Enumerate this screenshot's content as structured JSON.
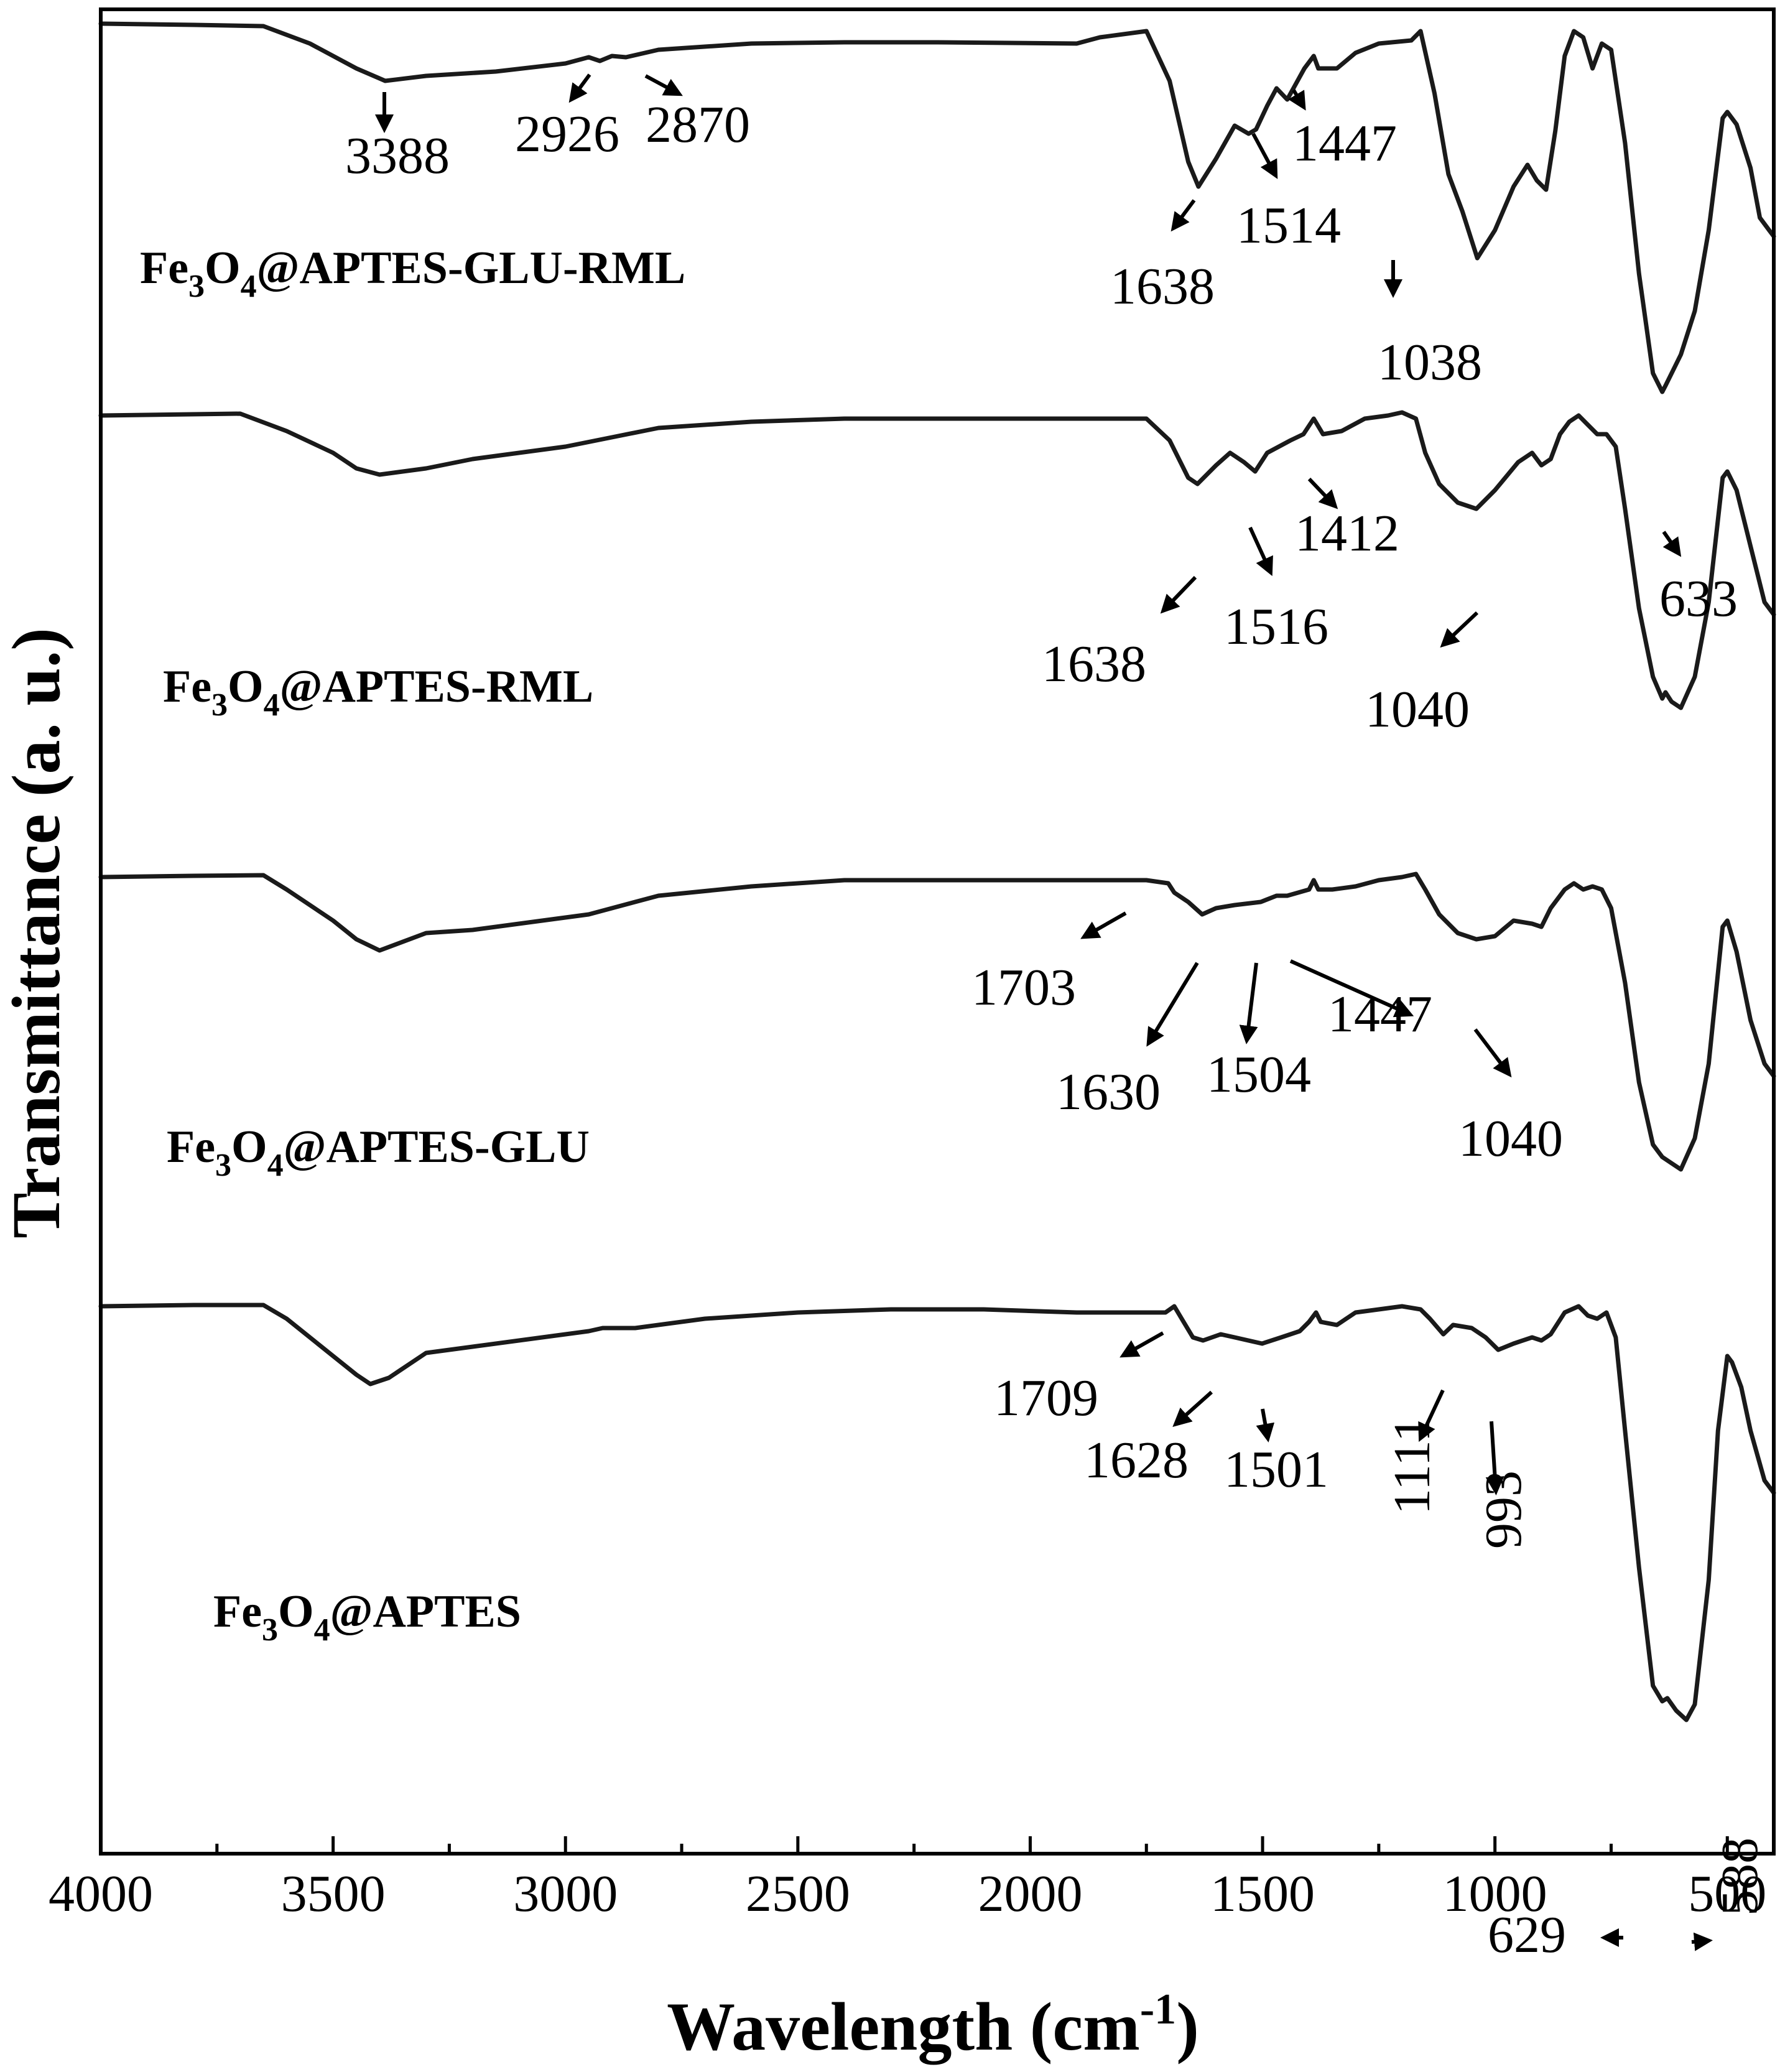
{
  "chart_data": {
    "type": "line",
    "title": "",
    "xlabel": "Wavelength (cm",
    "xlabel_sup": "-1",
    "xlabel_close": ")",
    "ylabel": "Transmittance (a. u.)",
    "xlim": [
      4000,
      400
    ],
    "x_reversed": true,
    "x_ticks": [
      4000,
      3500,
      3000,
      2500,
      2000,
      1500,
      1000,
      500
    ],
    "x_tick_labels": [
      "4000",
      "3500",
      "3000",
      "2500",
      "2000",
      "1500",
      "1000",
      "500"
    ],
    "grid": false,
    "series": [
      {
        "name_parts": [
          "Fe",
          "3",
          "O",
          "4",
          "@APTES-GLU-RML"
        ],
        "values": [
          [
            4000,
            8
          ],
          [
            3800,
            10
          ],
          [
            3650,
            12
          ],
          [
            3550,
            40
          ],
          [
            3450,
            80
          ],
          [
            3388,
            100
          ],
          [
            3300,
            92
          ],
          [
            3150,
            85
          ],
          [
            3000,
            72
          ],
          [
            2950,
            62
          ],
          [
            2926,
            68
          ],
          [
            2900,
            60
          ],
          [
            2870,
            62
          ],
          [
            2800,
            50
          ],
          [
            2600,
            40
          ],
          [
            2400,
            38
          ],
          [
            2200,
            38
          ],
          [
            1900,
            40
          ],
          [
            1850,
            30
          ],
          [
            1750,
            20
          ],
          [
            1700,
            100
          ],
          [
            1660,
            230
          ],
          [
            1638,
            270
          ],
          [
            1600,
            225
          ],
          [
            1560,
            172
          ],
          [
            1530,
            185
          ],
          [
            1514,
            178
          ],
          [
            1490,
            140
          ],
          [
            1470,
            112
          ],
          [
            1447,
            130
          ],
          [
            1410,
            80
          ],
          [
            1390,
            60
          ],
          [
            1380,
            80
          ],
          [
            1340,
            80
          ],
          [
            1300,
            55
          ],
          [
            1250,
            40
          ],
          [
            1180,
            35
          ],
          [
            1160,
            20
          ],
          [
            1130,
            120
          ],
          [
            1100,
            250
          ],
          [
            1070,
            310
          ],
          [
            1038,
            385
          ],
          [
            1000,
            340
          ],
          [
            960,
            270
          ],
          [
            930,
            235
          ],
          [
            910,
            260
          ],
          [
            890,
            275
          ],
          [
            870,
            180
          ],
          [
            850,
            60
          ],
          [
            830,
            20
          ],
          [
            810,
            30
          ],
          [
            790,
            80
          ],
          [
            770,
            40
          ],
          [
            750,
            50
          ],
          [
            720,
            200
          ],
          [
            690,
            410
          ],
          [
            660,
            570
          ],
          [
            640,
            600
          ],
          [
            633,
            590
          ],
          [
            600,
            540
          ],
          [
            570,
            470
          ],
          [
            540,
            340
          ],
          [
            510,
            160
          ],
          [
            500,
            150
          ],
          [
            480,
            170
          ],
          [
            450,
            240
          ],
          [
            430,
            320
          ],
          [
            410,
            340
          ],
          [
            400,
            350
          ]
        ]
      },
      {
        "name_parts": [
          "Fe",
          "3",
          "O",
          "4",
          "@APTES-RML"
        ],
        "values": [
          [
            4000,
            0
          ],
          [
            3700,
            -3
          ],
          [
            3600,
            25
          ],
          [
            3500,
            60
          ],
          [
            3450,
            85
          ],
          [
            3400,
            95
          ],
          [
            3300,
            85
          ],
          [
            3200,
            70
          ],
          [
            3000,
            50
          ],
          [
            2900,
            35
          ],
          [
            2800,
            20
          ],
          [
            2600,
            10
          ],
          [
            2400,
            5
          ],
          [
            2200,
            5
          ],
          [
            1900,
            5
          ],
          [
            1750,
            5
          ],
          [
            1700,
            40
          ],
          [
            1660,
            100
          ],
          [
            1640,
            110
          ],
          [
            1600,
            80
          ],
          [
            1570,
            60
          ],
          [
            1540,
            75
          ],
          [
            1516,
            90
          ],
          [
            1490,
            60
          ],
          [
            1440,
            40
          ],
          [
            1412,
            30
          ],
          [
            1390,
            5
          ],
          [
            1370,
            30
          ],
          [
            1330,
            25
          ],
          [
            1280,
            5
          ],
          [
            1230,
            0
          ],
          [
            1200,
            -5
          ],
          [
            1170,
            5
          ],
          [
            1150,
            60
          ],
          [
            1120,
            110
          ],
          [
            1080,
            140
          ],
          [
            1040,
            150
          ],
          [
            1000,
            120
          ],
          [
            950,
            75
          ],
          [
            920,
            60
          ],
          [
            900,
            80
          ],
          [
            880,
            70
          ],
          [
            860,
            30
          ],
          [
            840,
            10
          ],
          [
            820,
            0
          ],
          [
            800,
            15
          ],
          [
            780,
            30
          ],
          [
            760,
            30
          ],
          [
            740,
            50
          ],
          [
            720,
            150
          ],
          [
            690,
            310
          ],
          [
            660,
            420
          ],
          [
            640,
            455
          ],
          [
            633,
            445
          ],
          [
            620,
            460
          ],
          [
            600,
            470
          ],
          [
            570,
            420
          ],
          [
            540,
            300
          ],
          [
            510,
            100
          ],
          [
            500,
            90
          ],
          [
            480,
            120
          ],
          [
            450,
            210
          ],
          [
            420,
            300
          ],
          [
            400,
            320
          ]
        ]
      },
      {
        "name_parts": [
          "Fe",
          "3",
          "O",
          "4",
          "@APTES-GLU"
        ],
        "values": [
          [
            4000,
            0
          ],
          [
            3800,
            -2
          ],
          [
            3650,
            -3
          ],
          [
            3600,
            20
          ],
          [
            3500,
            70
          ],
          [
            3450,
            100
          ],
          [
            3400,
            118
          ],
          [
            3300,
            90
          ],
          [
            3200,
            85
          ],
          [
            3000,
            65
          ],
          [
            2950,
            60
          ],
          [
            2900,
            50
          ],
          [
            2800,
            30
          ],
          [
            2600,
            15
          ],
          [
            2400,
            5
          ],
          [
            2200,
            5
          ],
          [
            1900,
            5
          ],
          [
            1750,
            5
          ],
          [
            1703,
            10
          ],
          [
            1690,
            25
          ],
          [
            1660,
            40
          ],
          [
            1630,
            60
          ],
          [
            1600,
            50
          ],
          [
            1560,
            45
          ],
          [
            1504,
            40
          ],
          [
            1470,
            30
          ],
          [
            1447,
            30
          ],
          [
            1400,
            20
          ],
          [
            1390,
            5
          ],
          [
            1380,
            20
          ],
          [
            1350,
            20
          ],
          [
            1300,
            15
          ],
          [
            1250,
            5
          ],
          [
            1200,
            0
          ],
          [
            1170,
            -5
          ],
          [
            1150,
            20
          ],
          [
            1120,
            60
          ],
          [
            1080,
            90
          ],
          [
            1040,
            100
          ],
          [
            1000,
            95
          ],
          [
            960,
            70
          ],
          [
            920,
            75
          ],
          [
            900,
            80
          ],
          [
            880,
            50
          ],
          [
            850,
            20
          ],
          [
            830,
            10
          ],
          [
            810,
            20
          ],
          [
            790,
            15
          ],
          [
            770,
            20
          ],
          [
            750,
            50
          ],
          [
            720,
            170
          ],
          [
            690,
            330
          ],
          [
            660,
            430
          ],
          [
            640,
            450
          ],
          [
            620,
            460
          ],
          [
            600,
            470
          ],
          [
            570,
            420
          ],
          [
            540,
            300
          ],
          [
            510,
            80
          ],
          [
            500,
            70
          ],
          [
            480,
            120
          ],
          [
            450,
            230
          ],
          [
            420,
            300
          ],
          [
            400,
            320
          ]
        ]
      },
      {
        "name_parts": [
          "Fe",
          "3",
          "O",
          "4",
          "@APTES"
        ],
        "values": [
          [
            4000,
            0
          ],
          [
            3800,
            -2
          ],
          [
            3650,
            -2
          ],
          [
            3600,
            20
          ],
          [
            3500,
            80
          ],
          [
            3450,
            110
          ],
          [
            3420,
            125
          ],
          [
            3380,
            115
          ],
          [
            3300,
            75
          ],
          [
            3200,
            65
          ],
          [
            3000,
            45
          ],
          [
            2950,
            40
          ],
          [
            2920,
            35
          ],
          [
            2850,
            35
          ],
          [
            2700,
            20
          ],
          [
            2500,
            10
          ],
          [
            2300,
            5
          ],
          [
            2100,
            5
          ],
          [
            1900,
            10
          ],
          [
            1750,
            10
          ],
          [
            1709,
            10
          ],
          [
            1690,
            0
          ],
          [
            1670,
            25
          ],
          [
            1650,
            50
          ],
          [
            1628,
            55
          ],
          [
            1590,
            45
          ],
          [
            1560,
            50
          ],
          [
            1501,
            60
          ],
          [
            1460,
            50
          ],
          [
            1420,
            40
          ],
          [
            1400,
            25
          ],
          [
            1385,
            10
          ],
          [
            1375,
            25
          ],
          [
            1340,
            30
          ],
          [
            1300,
            10
          ],
          [
            1250,
            5
          ],
          [
            1200,
            0
          ],
          [
            1160,
            5
          ],
          [
            1140,
            20
          ],
          [
            1111,
            45
          ],
          [
            1090,
            30
          ],
          [
            1050,
            35
          ],
          [
            1020,
            50
          ],
          [
            993,
            70
          ],
          [
            960,
            60
          ],
          [
            920,
            50
          ],
          [
            900,
            55
          ],
          [
            880,
            45
          ],
          [
            850,
            10
          ],
          [
            820,
            0
          ],
          [
            800,
            15
          ],
          [
            780,
            20
          ],
          [
            760,
            10
          ],
          [
            740,
            50
          ],
          [
            720,
            200
          ],
          [
            690,
            420
          ],
          [
            660,
            610
          ],
          [
            640,
            635
          ],
          [
            629,
            630
          ],
          [
            610,
            650
          ],
          [
            588,
            665
          ],
          [
            570,
            640
          ],
          [
            540,
            440
          ],
          [
            520,
            200
          ],
          [
            500,
            80
          ],
          [
            490,
            90
          ],
          [
            470,
            130
          ],
          [
            450,
            200
          ],
          [
            420,
            280
          ],
          [
            400,
            300
          ]
        ]
      }
    ],
    "annotations": [
      {
        "text": "3388"
      },
      {
        "text": "2926"
      },
      {
        "text": "2870"
      },
      {
        "text": "1638"
      },
      {
        "text": "1514"
      },
      {
        "text": "1447"
      },
      {
        "text": "1038"
      },
      {
        "text": "1638"
      },
      {
        "text": "1516"
      },
      {
        "text": "1412"
      },
      {
        "text": "1040"
      },
      {
        "text": "633"
      },
      {
        "text": "1703"
      },
      {
        "text": "1630"
      },
      {
        "text": "1504"
      },
      {
        "text": "1447"
      },
      {
        "text": "1040"
      },
      {
        "text": "1709"
      },
      {
        "text": "1628"
      },
      {
        "text": "1501"
      },
      {
        "text": "1111"
      },
      {
        "text": "993"
      },
      {
        "text": "629"
      },
      {
        "text": "588"
      }
    ]
  }
}
